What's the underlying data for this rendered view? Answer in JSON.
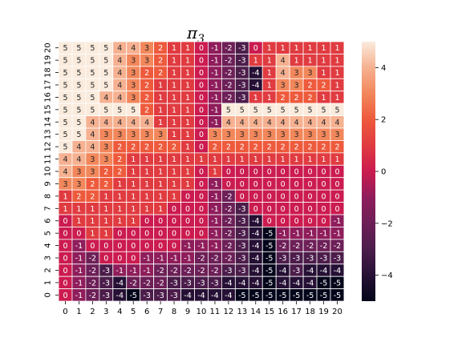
{
  "chart_data": {
    "type": "heatmap",
    "title": "π",
    "title_subscript": "3",
    "x_ticks": [
      0,
      1,
      2,
      3,
      4,
      5,
      6,
      7,
      8,
      9,
      10,
      11,
      12,
      13,
      14,
      15,
      16,
      17,
      18,
      19,
      20
    ],
    "y_ticks": [
      20,
      19,
      18,
      17,
      16,
      15,
      14,
      13,
      12,
      11,
      10,
      9,
      8,
      7,
      6,
      5,
      4,
      3,
      2,
      1,
      0
    ],
    "rows": [
      [
        5,
        5,
        5,
        5,
        4,
        4,
        3,
        2,
        1,
        1,
        0,
        -1,
        -2,
        -3,
        0,
        1,
        1,
        1,
        1,
        1,
        1
      ],
      [
        5,
        5,
        5,
        5,
        4,
        3,
        3,
        2,
        1,
        1,
        0,
        -1,
        -2,
        -3,
        1,
        1,
        4,
        1,
        1,
        1,
        1
      ],
      [
        5,
        5,
        5,
        5,
        4,
        3,
        2,
        2,
        1,
        1,
        0,
        -1,
        -2,
        -3,
        -4,
        1,
        4,
        3,
        3,
        1,
        1
      ],
      [
        5,
        5,
        5,
        5,
        4,
        3,
        2,
        1,
        1,
        1,
        0,
        -1,
        -2,
        -3,
        -4,
        1,
        3,
        3,
        2,
        2,
        1
      ],
      [
        5,
        5,
        5,
        4,
        4,
        3,
        2,
        1,
        1,
        1,
        0,
        -1,
        -2,
        -3,
        1,
        1,
        2,
        2,
        2,
        1,
        1
      ],
      [
        5,
        5,
        5,
        5,
        5,
        5,
        2,
        1,
        1,
        1,
        0,
        -1,
        5,
        5,
        5,
        5,
        5,
        5,
        5,
        5,
        5
      ],
      [
        5,
        5,
        4,
        4,
        4,
        4,
        4,
        1,
        1,
        1,
        0,
        -1,
        4,
        4,
        4,
        4,
        4,
        4,
        4,
        4,
        4
      ],
      [
        5,
        5,
        4,
        3,
        3,
        3,
        3,
        3,
        1,
        1,
        0,
        3,
        3,
        3,
        3,
        3,
        3,
        3,
        3,
        3,
        3
      ],
      [
        5,
        4,
        4,
        3,
        2,
        2,
        2,
        2,
        2,
        1,
        0,
        2,
        2,
        2,
        2,
        2,
        2,
        2,
        2,
        2,
        2
      ],
      [
        4,
        4,
        3,
        3,
        2,
        1,
        1,
        1,
        1,
        1,
        1,
        1,
        1,
        1,
        1,
        1,
        1,
        1,
        1,
        1,
        1
      ],
      [
        4,
        3,
        3,
        2,
        2,
        1,
        1,
        1,
        1,
        1,
        0,
        1,
        0,
        0,
        0,
        0,
        0,
        0,
        0,
        0,
        0
      ],
      [
        3,
        3,
        2,
        2,
        1,
        1,
        1,
        1,
        1,
        1,
        0,
        -1,
        0,
        0,
        0,
        0,
        0,
        0,
        0,
        0,
        0
      ],
      [
        1,
        2,
        2,
        1,
        1,
        1,
        1,
        1,
        1,
        0,
        0,
        -1,
        -2,
        0,
        0,
        0,
        0,
        0,
        0,
        0,
        0
      ],
      [
        1,
        1,
        1,
        1,
        1,
        1,
        1,
        1,
        0,
        0,
        0,
        -1,
        -2,
        -3,
        0,
        0,
        0,
        0,
        0,
        0,
        0
      ],
      [
        0,
        1,
        1,
        1,
        1,
        1,
        0,
        0,
        0,
        0,
        0,
        -1,
        -2,
        -3,
        -4,
        0,
        0,
        0,
        0,
        0,
        -1
      ],
      [
        0,
        0,
        1,
        1,
        0,
        0,
        0,
        0,
        0,
        0,
        0,
        -1,
        -2,
        -3,
        -4,
        -5,
        -1,
        -1,
        -1,
        -1,
        -1
      ],
      [
        0,
        -1,
        0,
        0,
        0,
        0,
        0,
        0,
        0,
        -1,
        -1,
        -1,
        -2,
        -3,
        -4,
        -5,
        -2,
        -2,
        -2,
        -2,
        -2
      ],
      [
        0,
        -1,
        -2,
        0,
        0,
        0,
        -1,
        -1,
        -1,
        -1,
        -2,
        -2,
        -2,
        -3,
        -4,
        -5,
        -3,
        -3,
        -3,
        -3,
        -3
      ],
      [
        0,
        -1,
        -2,
        -3,
        -1,
        -1,
        -1,
        -2,
        -2,
        -2,
        -2,
        -2,
        -3,
        -3,
        -4,
        -5,
        -4,
        -3,
        -4,
        -4,
        -4
      ],
      [
        0,
        -1,
        -2,
        -3,
        -4,
        -2,
        -2,
        -2,
        -3,
        -3,
        -3,
        -3,
        -4,
        -4,
        -4,
        -5,
        -4,
        -4,
        -4,
        -5,
        -5
      ],
      [
        0,
        -1,
        -2,
        -3,
        -4,
        -5,
        -3,
        -3,
        -3,
        -4,
        -4,
        -4,
        -4,
        -5,
        -5,
        -5,
        -5,
        -5,
        -5,
        -5,
        -5
      ]
    ],
    "vmin": -5,
    "vmax": 5,
    "colormap": "rocket",
    "colorbar_ticks": [
      4,
      2,
      0,
      -2,
      -4
    ],
    "annotations": true,
    "grid_lines": "white"
  }
}
